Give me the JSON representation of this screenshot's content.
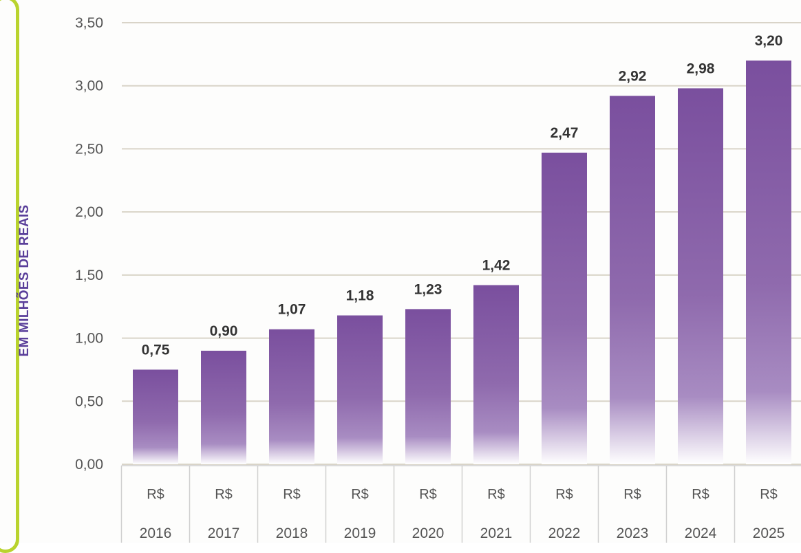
{
  "chart_data": {
    "type": "bar",
    "title": "",
    "xlabel": "",
    "ylabel": "EM MILHÕES DE REAIS",
    "ylim": [
      0,
      3.5
    ],
    "yticks": [
      "0,00",
      "0,50",
      "1,00",
      "1,50",
      "2,00",
      "2,50",
      "3,00",
      "3,50"
    ],
    "grid": true,
    "legend": "none",
    "categories": [
      {
        "currency": "R$",
        "year": "2016"
      },
      {
        "currency": "R$",
        "year": "2017"
      },
      {
        "currency": "R$",
        "year": "2018"
      },
      {
        "currency": "R$",
        "year": "2019"
      },
      {
        "currency": "R$",
        "year": "2020"
      },
      {
        "currency": "R$",
        "year": "2021"
      },
      {
        "currency": "R$",
        "year": "2022"
      },
      {
        "currency": "R$",
        "year": "2023"
      },
      {
        "currency": "R$",
        "year": "2024"
      },
      {
        "currency": "R$",
        "year": "2025"
      }
    ],
    "values": [
      0.75,
      0.9,
      1.07,
      1.18,
      1.23,
      1.42,
      2.47,
      2.92,
      2.98,
      3.2
    ],
    "data_labels": [
      "0,75",
      "0,90",
      "1,07",
      "1,18",
      "1,23",
      "1,42",
      "2,47",
      "2,92",
      "2,98",
      "3,20"
    ],
    "colors": {
      "bar": "#7a4f9e",
      "accent": "#b9d32e",
      "axis_label": "#5a3f9a",
      "tick_text": "#555555",
      "grid": "#d9d4c8"
    }
  }
}
